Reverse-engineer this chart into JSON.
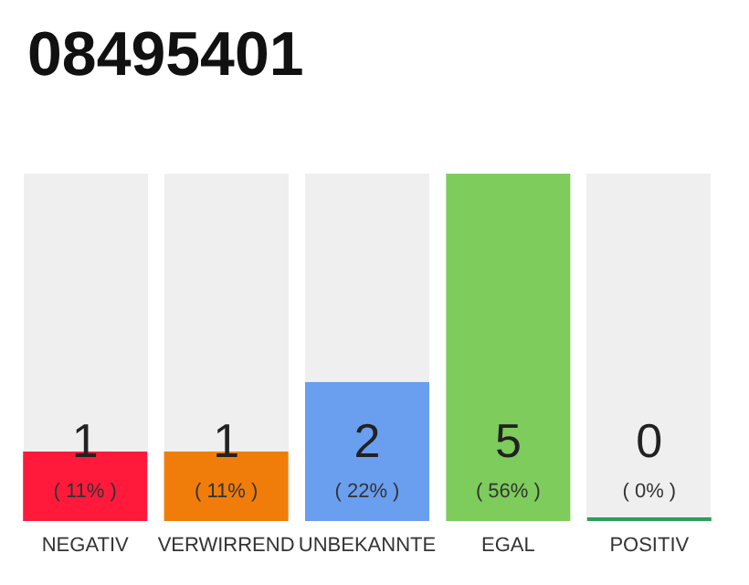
{
  "chart_data": {
    "type": "bar",
    "title": "08495401",
    "categories": [
      "NEGATIV",
      "VERWIRREND",
      "UNBEKANNTE",
      "EGAL",
      "POSITIV"
    ],
    "values": [
      1,
      1,
      2,
      5,
      0
    ],
    "colors": [
      "#ff1a3c",
      "#f07d0a",
      "#6a9ff0",
      "#7dcc5c",
      "#2ca05a"
    ],
    "tick_labels": "x",
    "value_labels": [
      "1",
      "1",
      "2",
      "5",
      "0"
    ],
    "annotations": [
      "( 11% )",
      "( 11% )",
      "( 22% )",
      "( 56% )",
      "( 0% )"
    ]
  }
}
